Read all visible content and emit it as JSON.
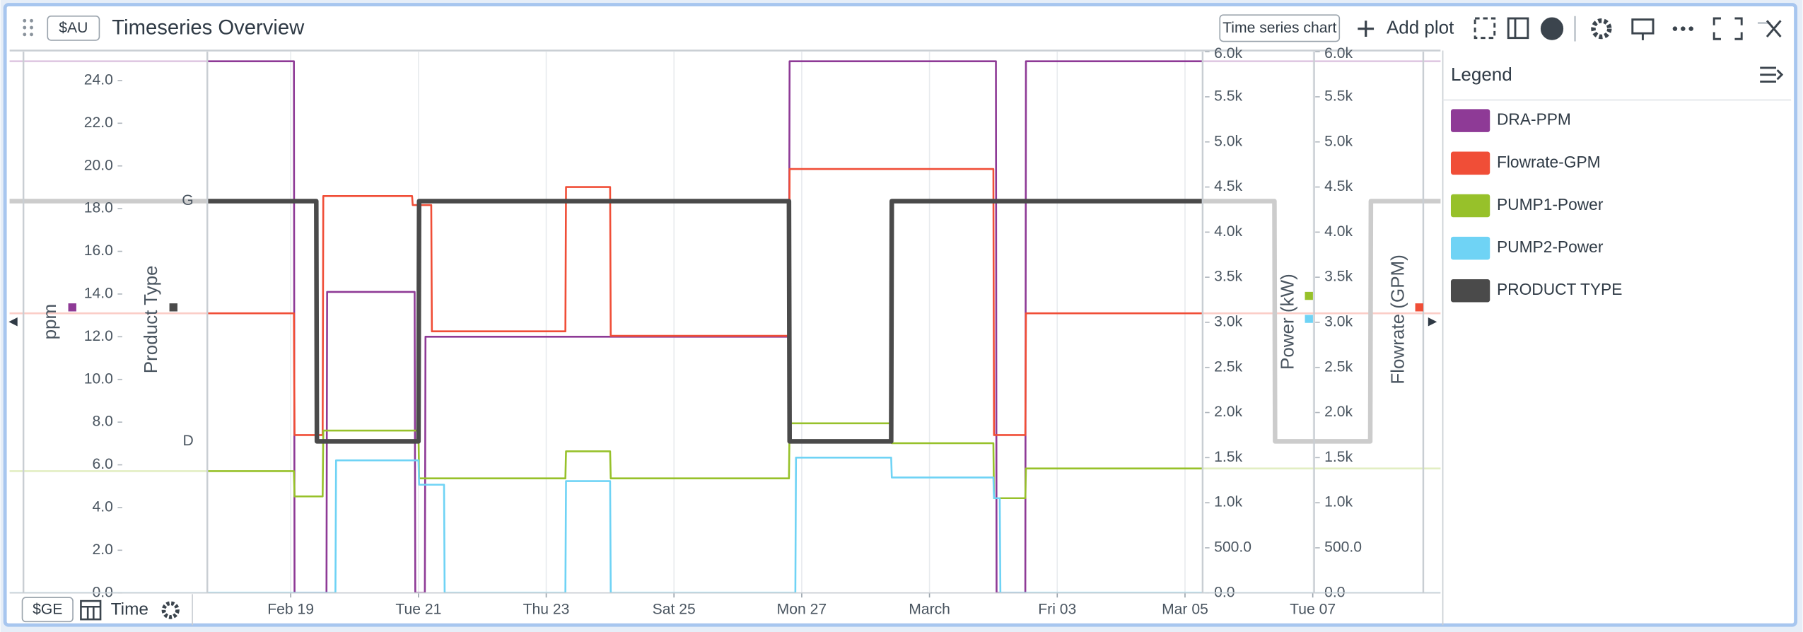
{
  "header": {
    "tag": "$AU",
    "title": "Timeseries Overview",
    "chart_type_button": "Time series chart",
    "add_plot": "Add plot"
  },
  "legend": {
    "title": "Legend"
  },
  "footer": {
    "tag": "$GE",
    "axis_label": "Time"
  },
  "chart_data": {
    "type": "line",
    "ylabel": "ppm",
    "product_label": "Product Type",
    "y2label": "Power (kW)",
    "y3label": "Flowrate (GPM)",
    "grid": true,
    "xlim": [
      14.6,
      37.0
    ],
    "xticks": [
      {
        "value": 19,
        "label": "Feb 19"
      },
      {
        "value": 21,
        "label": "Tue 21"
      },
      {
        "value": 23,
        "label": "Thu 23"
      },
      {
        "value": 25,
        "label": "Sat 25"
      },
      {
        "value": 27,
        "label": "Mon 27"
      },
      {
        "value": 29,
        "label": "March"
      },
      {
        "value": 31,
        "label": "Fri 03"
      },
      {
        "value": 33,
        "label": "Mar 05"
      },
      {
        "value": 35,
        "label": "Tue 07"
      }
    ],
    "ylim": [
      0,
      25.35
    ],
    "yticks": [
      {
        "value": 0,
        "label": "0.0"
      },
      {
        "value": 2,
        "label": "2.0"
      },
      {
        "value": 4,
        "label": "4.0"
      },
      {
        "value": 6,
        "label": "6.0"
      },
      {
        "value": 8,
        "label": "8.0"
      },
      {
        "value": 10,
        "label": "10.0"
      },
      {
        "value": 12,
        "label": "12.0"
      },
      {
        "value": 14,
        "label": "14.0"
      },
      {
        "value": 16,
        "label": "16.0"
      },
      {
        "value": 18,
        "label": "18.0"
      },
      {
        "value": 20,
        "label": "20.0"
      },
      {
        "value": 22,
        "label": "22.0"
      },
      {
        "value": 24,
        "label": "24.0"
      }
    ],
    "product_categories": [
      "D",
      "G"
    ],
    "y2lim": [
      0,
      6000
    ],
    "y2ticks": [
      {
        "value": 0,
        "label": "0.0"
      },
      {
        "value": 500,
        "label": "500.0"
      },
      {
        "value": 1000,
        "label": "1.0k"
      },
      {
        "value": 1500,
        "label": "1.5k"
      },
      {
        "value": 2000,
        "label": "2.0k"
      },
      {
        "value": 2500,
        "label": "2.5k"
      },
      {
        "value": 3000,
        "label": "3.0k"
      },
      {
        "value": 3500,
        "label": "3.5k"
      },
      {
        "value": 4000,
        "label": "4.0k"
      },
      {
        "value": 4500,
        "label": "4.5k"
      },
      {
        "value": 5000,
        "label": "5.0k"
      },
      {
        "value": 5500,
        "label": "5.5k"
      },
      {
        "value": 6000,
        "label": "6.0k"
      }
    ],
    "y3lim": [
      0,
      6000
    ],
    "y3ticks": [
      {
        "value": 0,
        "label": "0.0"
      },
      {
        "value": 500,
        "label": "500.0"
      },
      {
        "value": 1000,
        "label": "1.0k"
      },
      {
        "value": 1500,
        "label": "1.5k"
      },
      {
        "value": 2000,
        "label": "2.0k"
      },
      {
        "value": 2500,
        "label": "2.5k"
      },
      {
        "value": 3000,
        "label": "3.0k"
      },
      {
        "value": 3500,
        "label": "3.5k"
      },
      {
        "value": 4000,
        "label": "4.0k"
      },
      {
        "value": 4500,
        "label": "4.5k"
      },
      {
        "value": 5000,
        "label": "5.0k"
      },
      {
        "value": 5500,
        "label": "5.5k"
      },
      {
        "value": 6000,
        "label": "6.0k"
      }
    ],
    "series": [
      {
        "name": "DRA-PPM",
        "color": "#8e3a96",
        "axis": "y",
        "x": [
          14.6,
          19.05,
          19.06,
          19.56,
          19.57,
          20.94,
          20.95,
          21.1,
          21.11,
          26.8,
          26.81,
          30.04,
          30.05,
          30.5,
          30.51,
          37.0
        ],
        "values": [
          24.9,
          24.9,
          0,
          0,
          14.1,
          14.1,
          0,
          0,
          12.0,
          12.0,
          24.9,
          24.9,
          0,
          0,
          24.9,
          24.9
        ]
      },
      {
        "name": "Flowrate-GPM",
        "color": "#f04e37",
        "axis": "y3",
        "x": [
          14.6,
          19.05,
          19.06,
          19.5,
          19.51,
          20.9,
          20.91,
          21.2,
          21.21,
          23.3,
          23.31,
          24.0,
          24.01,
          26.8,
          26.81,
          30.0,
          30.01,
          30.5,
          30.51,
          37.0
        ],
        "values": [
          3100,
          3100,
          1750,
          1750,
          4400,
          4400,
          4300,
          4300,
          2900,
          2900,
          4500,
          4500,
          2850,
          2850,
          4700,
          4700,
          1750,
          1750,
          3100,
          3100
        ]
      },
      {
        "name": "PUMP1-Power",
        "color": "#97c12a",
        "axis": "y2",
        "x": [
          14.6,
          19.05,
          19.06,
          19.5,
          19.51,
          21.0,
          21.01,
          23.3,
          23.31,
          24.0,
          24.01,
          26.8,
          26.81,
          28.4,
          28.41,
          30.0,
          30.01,
          30.5,
          30.51,
          37.0
        ],
        "values": [
          1350,
          1350,
          1070,
          1070,
          1800,
          1800,
          1270,
          1270,
          1570,
          1570,
          1270,
          1270,
          1880,
          1880,
          1660,
          1660,
          1050,
          1050,
          1380,
          1380
        ]
      },
      {
        "name": "PUMP2-Power",
        "color": "#6fd3f5",
        "axis": "y2",
        "x": [
          14.6,
          19.7,
          19.71,
          21.0,
          21.01,
          21.4,
          21.41,
          23.3,
          23.31,
          24.0,
          24.01,
          26.9,
          26.91,
          28.4,
          28.41,
          30.0,
          30.01,
          30.1,
          30.11,
          37.0
        ],
        "values": [
          0,
          0,
          1470,
          1470,
          1200,
          1200,
          0,
          0,
          1240,
          1240,
          0,
          0,
          1500,
          1500,
          1280,
          1280,
          1050,
          1050,
          0,
          0
        ]
      },
      {
        "name": "PRODUCT TYPE",
        "color": "#4a4a4a",
        "axis": "product",
        "x": [
          14.6,
          19.4,
          19.41,
          21.0,
          21.01,
          26.8,
          26.81,
          28.4,
          28.41,
          34.4,
          34.41,
          35.9,
          35.91,
          37.0
        ],
        "values": [
          "G",
          "G",
          "D",
          "D",
          "G",
          "G",
          "D",
          "D",
          "G",
          "G",
          "D",
          "D",
          "G",
          "G"
        ]
      }
    ]
  }
}
